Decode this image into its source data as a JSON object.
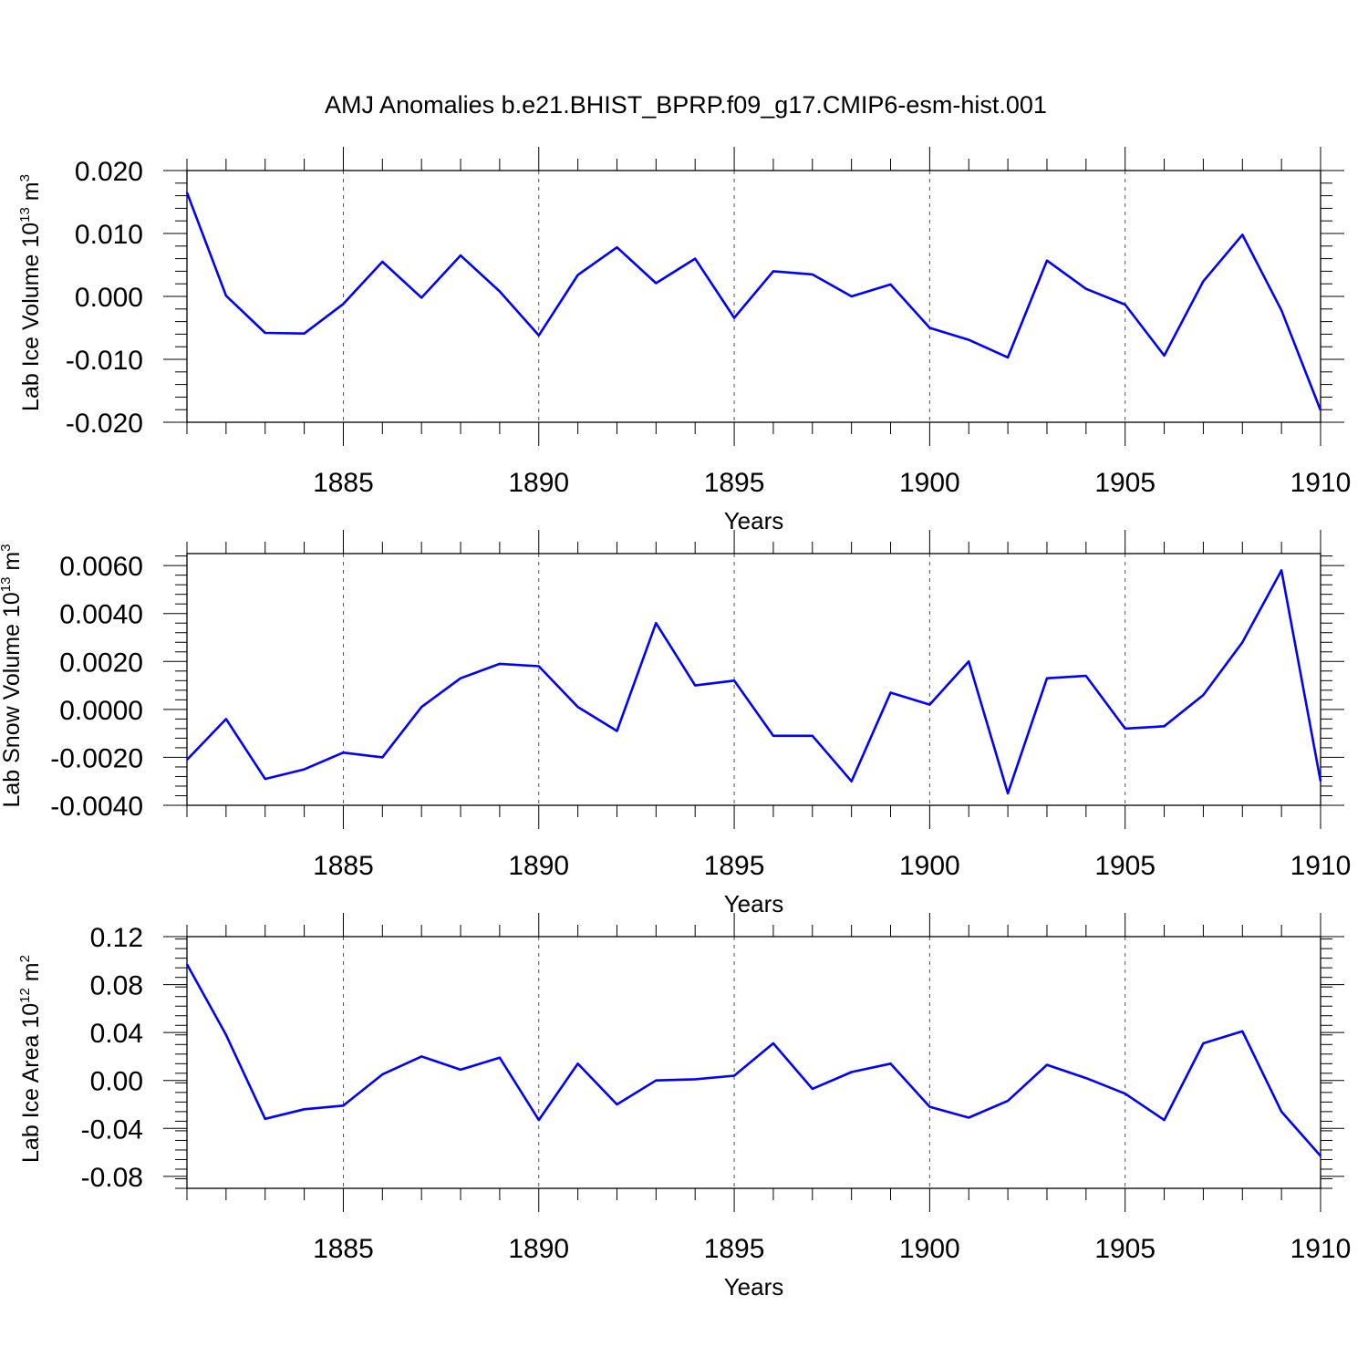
{
  "title": "AMJ Anomalies b.e21.BHIST_BPRP.f09_g17.CMIP6-esm-hist.001",
  "colors": {
    "line": "#0000ff",
    "axis": "#000000",
    "grid": "#555555"
  },
  "chart_data": [
    {
      "type": "line",
      "xlabel": "Years",
      "ylabel": "Lab Ice Volume 10",
      "ylabel_exp": "13",
      "ylabel_unit": " m",
      "ylabel_unit_exp": "3",
      "xlim": [
        1881,
        1910
      ],
      "ylim": [
        -0.02,
        0.02
      ],
      "xticks": [
        1885,
        1890,
        1895,
        1900,
        1905,
        1910
      ],
      "yticks": [
        0.02,
        0.01,
        0.0,
        -0.01,
        -0.02
      ],
      "ytick_labels": [
        "0.020",
        "0.010",
        "0.000",
        "-0.010",
        "-0.020"
      ],
      "grid": "vertical dashed at major x ticks",
      "x": [
        1881,
        1882,
        1883,
        1884,
        1885,
        1886,
        1887,
        1888,
        1889,
        1890,
        1891,
        1892,
        1893,
        1894,
        1895,
        1896,
        1897,
        1898,
        1899,
        1900,
        1901,
        1902,
        1903,
        1904,
        1905,
        1906,
        1907,
        1908,
        1909,
        1910
      ],
      "series": [
        {
          "values": [
            0.0165,
            0.0001,
            -0.0058,
            -0.0059,
            -0.0012,
            0.0055,
            -0.0002,
            0.0065,
            0.0008,
            -0.0062,
            0.0034,
            0.0078,
            0.0021,
            0.006,
            -0.0034,
            0.004,
            0.0035,
            0.0,
            0.0019,
            -0.005,
            -0.0069,
            -0.0097,
            0.0057,
            0.0012,
            -0.0013,
            -0.0094,
            0.0024,
            0.0098,
            -0.0022,
            -0.0181
          ]
        }
      ]
    },
    {
      "type": "line",
      "xlabel": "Years",
      "ylabel": "Lab Snow Volume 10",
      "ylabel_exp": "13",
      "ylabel_unit": " m",
      "ylabel_unit_exp": "3",
      "xlim": [
        1881,
        1910
      ],
      "ylim": [
        -0.004,
        0.0065
      ],
      "xticks": [
        1885,
        1890,
        1895,
        1900,
        1905,
        1910
      ],
      "yticks": [
        0.006,
        0.004,
        0.002,
        0.0,
        -0.002,
        -0.004
      ],
      "ytick_labels": [
        "0.0060",
        "0.0040",
        "0.0020",
        "0.0000",
        "-0.0020",
        "-0.0040"
      ],
      "grid": "vertical dashed at major x ticks",
      "x": [
        1881,
        1882,
        1883,
        1884,
        1885,
        1886,
        1887,
        1888,
        1889,
        1890,
        1891,
        1892,
        1893,
        1894,
        1895,
        1896,
        1897,
        1898,
        1899,
        1900,
        1901,
        1902,
        1903,
        1904,
        1905,
        1906,
        1907,
        1908,
        1909,
        1910
      ],
      "series": [
        {
          "values": [
            -0.0021,
            -0.0004,
            -0.0029,
            -0.0025,
            -0.0018,
            -0.002,
            0.0001,
            0.0013,
            0.0019,
            0.0018,
            0.0001,
            -0.0009,
            0.0036,
            0.001,
            0.0012,
            -0.0011,
            -0.0011,
            -0.003,
            0.0007,
            0.0002,
            0.002,
            -0.0035,
            0.0013,
            0.0014,
            -0.0008,
            -0.0007,
            0.0006,
            0.0028,
            0.0058,
            -0.003
          ]
        }
      ]
    },
    {
      "type": "line",
      "xlabel": "Years",
      "ylabel": "Lab Ice Area 10",
      "ylabel_exp": "12",
      "ylabel_unit": " m",
      "ylabel_unit_exp": "2",
      "xlim": [
        1881,
        1910
      ],
      "ylim": [
        -0.09,
        0.12
      ],
      "xticks": [
        1885,
        1890,
        1895,
        1900,
        1905,
        1910
      ],
      "yticks": [
        0.12,
        0.08,
        0.04,
        0.0,
        -0.04,
        -0.08
      ],
      "ytick_labels": [
        "0.12",
        "0.08",
        "0.04",
        "0.00",
        "-0.04",
        "-0.08"
      ],
      "grid": "vertical dashed at major x ticks",
      "x": [
        1881,
        1882,
        1883,
        1884,
        1885,
        1886,
        1887,
        1888,
        1889,
        1890,
        1891,
        1892,
        1893,
        1894,
        1895,
        1896,
        1897,
        1898,
        1899,
        1900,
        1901,
        1902,
        1903,
        1904,
        1905,
        1906,
        1907,
        1908,
        1909,
        1910
      ],
      "series": [
        {
          "values": [
            0.097,
            0.038,
            -0.032,
            -0.024,
            -0.021,
            0.005,
            0.02,
            0.009,
            0.019,
            -0.033,
            0.014,
            -0.02,
            0.0,
            0.001,
            0.004,
            0.031,
            -0.007,
            0.007,
            0.014,
            -0.022,
            -0.031,
            -0.017,
            0.013,
            0.002,
            -0.011,
            -0.033,
            0.031,
            0.041,
            -0.026,
            -0.063
          ]
        }
      ]
    }
  ]
}
